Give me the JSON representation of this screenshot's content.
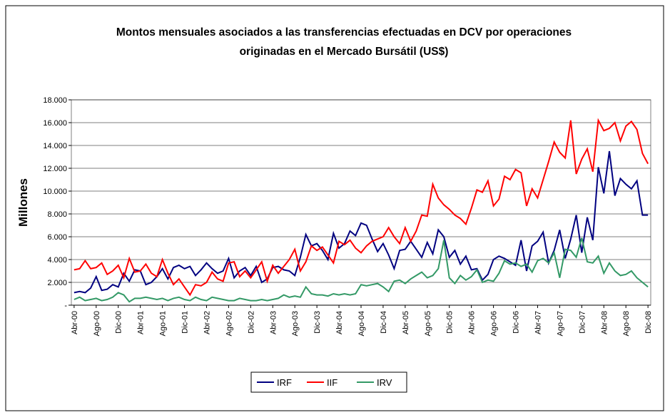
{
  "chart_data": {
    "type": "line",
    "title": [
      "Montos mensuales asociados a las transferencias efectuadas en DCV por  operaciones",
      "originadas en el Mercado Bursátil (US$)"
    ],
    "y_label": "Millones",
    "categories": [
      "Abr-00",
      null,
      null,
      null,
      "Ago-00",
      null,
      null,
      null,
      "Dic-00",
      null,
      null,
      null,
      "Abr-01",
      null,
      null,
      null,
      "Ago-01",
      null,
      null,
      null,
      "Dic-01",
      null,
      null,
      null,
      "Abr-02",
      null,
      null,
      null,
      "Ago-02",
      null,
      null,
      null,
      "Dic-02",
      null,
      null,
      null,
      "Abr-03",
      null,
      null,
      null,
      "Ago-03",
      null,
      null,
      null,
      "Dic-03",
      null,
      null,
      null,
      "Abr-04",
      null,
      null,
      null,
      "Ago-04",
      null,
      null,
      null,
      "Dic-04",
      null,
      null,
      null,
      "Abr-05",
      null,
      null,
      null,
      "Ago-05",
      null,
      null,
      null,
      "Dic-05",
      null,
      null,
      null,
      "Abr-06",
      null,
      null,
      null,
      "Ago-06",
      null,
      null,
      null,
      "Dic-06",
      null,
      null,
      null,
      "Abr-07",
      null,
      null,
      null,
      "Ago-07",
      null,
      null,
      null,
      "Dic-07",
      null,
      null,
      null,
      "Abr-08",
      null,
      null,
      null,
      "Ago-08",
      null,
      null,
      null,
      "Dic-08"
    ],
    "series": [
      {
        "name": "IRF",
        "color": "#000080",
        "values": [
          1100,
          1200,
          1100,
          1500,
          2500,
          1300,
          1400,
          1800,
          1600,
          2800,
          2100,
          3100,
          3000,
          1800,
          2000,
          2500,
          3200,
          2300,
          3300,
          3500,
          3200,
          3400,
          2600,
          3100,
          3700,
          3200,
          2800,
          3000,
          4100,
          2400,
          3000,
          3300,
          2600,
          3400,
          2000,
          2300,
          3300,
          3400,
          3100,
          3000,
          2600,
          4200,
          6200,
          5200,
          5400,
          4800,
          4000,
          6300,
          5000,
          5400,
          6500,
          6100,
          7200,
          7000,
          5800,
          4700,
          5400,
          4400,
          3200,
          4800,
          4900,
          5600,
          4900,
          4200,
          5500,
          4500,
          6600,
          6000,
          4200,
          4800,
          3600,
          4300,
          3100,
          3200,
          2200,
          2700,
          4000,
          4300,
          4100,
          3800,
          3500,
          5700,
          3000,
          5200,
          5600,
          6400,
          3700,
          4800,
          6600,
          4100,
          5800,
          7900,
          4600,
          7700,
          5700,
          12100,
          9800,
          13500,
          9600,
          11100,
          10600,
          10200,
          10900,
          7900,
          7900
        ]
      },
      {
        "name": "IIF",
        "color": "#ff0000",
        "values": [
          3100,
          3200,
          3900,
          3200,
          3300,
          3700,
          2700,
          3000,
          3500,
          2400,
          4100,
          2900,
          3000,
          3600,
          2800,
          2500,
          4000,
          2800,
          1800,
          2300,
          1600,
          900,
          1800,
          1700,
          2000,
          2900,
          2300,
          2100,
          3700,
          3800,
          2500,
          3000,
          2400,
          3100,
          3800,
          2100,
          3500,
          2800,
          3400,
          4000,
          4900,
          3000,
          3800,
          5200,
          4800,
          5100,
          4400,
          3700,
          5600,
          5300,
          5700,
          5000,
          4600,
          5200,
          5600,
          5800,
          6000,
          6800,
          6000,
          5400,
          6800,
          5600,
          6500,
          7900,
          7800,
          10600,
          9400,
          8800,
          8400,
          7900,
          7600,
          7100,
          8500,
          10100,
          9900,
          10900,
          8700,
          9300,
          11300,
          11000,
          11900,
          11600,
          8700,
          10200,
          9400,
          11000,
          12600,
          14300,
          13400,
          12900,
          16200,
          11500,
          12800,
          13700,
          11700,
          16200,
          15300,
          15500,
          16000,
          14400,
          15700,
          16100,
          15400,
          13300,
          12400
        ]
      },
      {
        "name": "IRV",
        "color": "#339966",
        "values": [
          500,
          700,
          400,
          500,
          600,
          400,
          500,
          700,
          1100,
          900,
          300,
          600,
          600,
          700,
          600,
          500,
          600,
          400,
          600,
          700,
          500,
          400,
          700,
          500,
          400,
          700,
          600,
          500,
          400,
          400,
          600,
          500,
          400,
          400,
          500,
          400,
          500,
          600,
          900,
          700,
          800,
          700,
          1600,
          1000,
          900,
          900,
          800,
          1000,
          900,
          1000,
          900,
          1000,
          1800,
          1700,
          1800,
          1900,
          1600,
          1200,
          2100,
          2200,
          1900,
          2300,
          2600,
          2900,
          2400,
          2600,
          3200,
          5700,
          2400,
          1900,
          2600,
          2200,
          2500,
          3100,
          2000,
          2200,
          2100,
          2800,
          3900,
          3600,
          3700,
          3400,
          3600,
          2900,
          3900,
          4100,
          3700,
          4600,
          2400,
          4900,
          4800,
          4200,
          5900,
          3800,
          3700,
          4300,
          2800,
          3700,
          3000,
          2600,
          2700,
          3000,
          2400,
          2000,
          1600
        ]
      }
    ],
    "ylim": [
      0,
      18000
    ],
    "yticks": [
      {
        "value": 0,
        "label": "-"
      },
      {
        "value": 2000,
        "label": "2.000"
      },
      {
        "value": 4000,
        "label": "4.000"
      },
      {
        "value": 6000,
        "label": "6.000"
      },
      {
        "value": 8000,
        "label": "8.000"
      },
      {
        "value": 10000,
        "label": "10.000"
      },
      {
        "value": 12000,
        "label": "12.000"
      },
      {
        "value": 14000,
        "label": "14.000"
      },
      {
        "value": 16000,
        "label": "16.000"
      },
      {
        "value": 18000,
        "label": "18.000"
      }
    ],
    "grid": true,
    "legend": "bottom"
  }
}
